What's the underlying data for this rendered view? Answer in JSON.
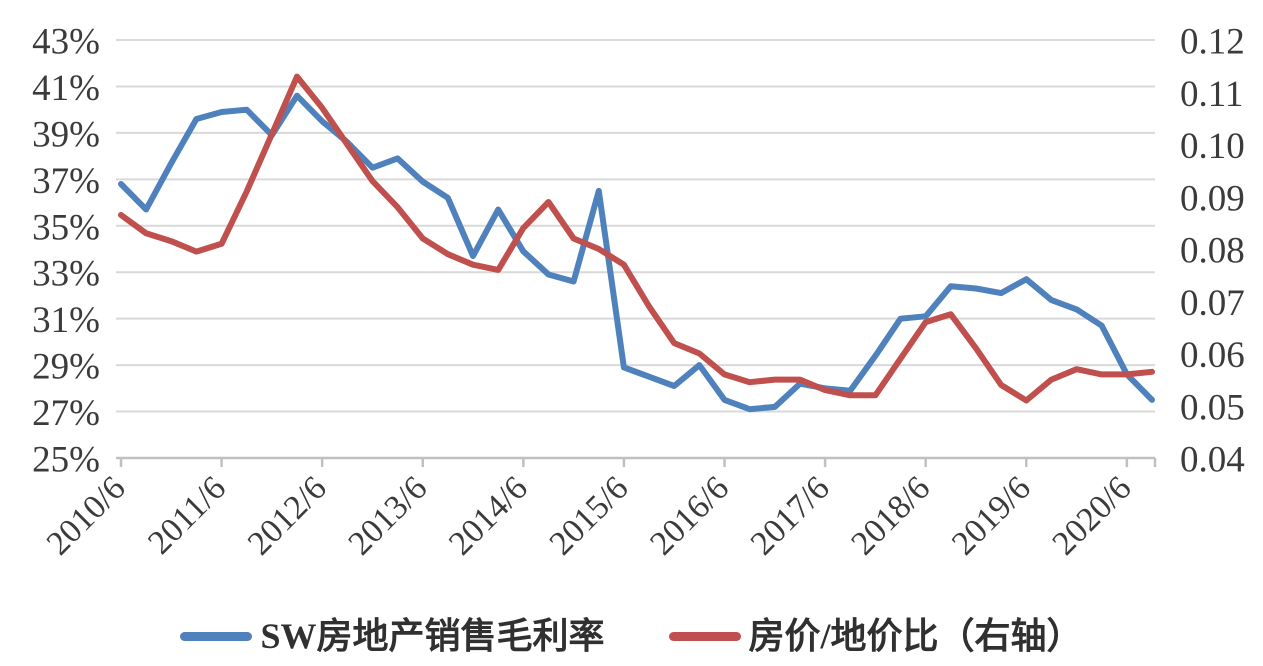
{
  "chart_data": {
    "type": "line",
    "title": "",
    "x_quarters": [
      "2010/6",
      "2010/9",
      "2010/12",
      "2011/3",
      "2011/6",
      "2011/9",
      "2011/12",
      "2012/3",
      "2012/6",
      "2012/9",
      "2012/12",
      "2013/3",
      "2013/6",
      "2013/9",
      "2013/12",
      "2014/3",
      "2014/6",
      "2014/9",
      "2014/12",
      "2015/3",
      "2015/6",
      "2015/9",
      "2015/12",
      "2016/3",
      "2016/6",
      "2016/9",
      "2016/12",
      "2017/3",
      "2017/6",
      "2017/9",
      "2017/12",
      "2018/3",
      "2018/6",
      "2018/9",
      "2018/12",
      "2019/3",
      "2019/6",
      "2019/9",
      "2019/12",
      "2020/3",
      "2020/6",
      "2020/9"
    ],
    "x_tick_labels": [
      "2010/6",
      "2011/6",
      "2012/6",
      "2013/6",
      "2014/6",
      "2015/6",
      "2016/6",
      "2017/6",
      "2018/6",
      "2019/6",
      "2020/6"
    ],
    "left_axis": {
      "min": 25,
      "max": 43,
      "step": 2,
      "labels": [
        "25%",
        "27%",
        "29%",
        "31%",
        "33%",
        "35%",
        "37%",
        "39%",
        "41%",
        "43%"
      ]
    },
    "right_axis": {
      "min": 0.04,
      "max": 0.12,
      "step": 0.01,
      "labels": [
        "0.04",
        "0.05",
        "0.06",
        "0.07",
        "0.08",
        "0.09",
        "0.10",
        "0.11",
        "0.12"
      ]
    },
    "grid": true,
    "legend_position": "bottom",
    "series": [
      {
        "name": "SW房地产销售毛利率",
        "axis": "left",
        "color": "#4f81bd",
        "values": [
          36.8,
          35.7,
          37.7,
          39.6,
          39.9,
          40.0,
          38.9,
          40.6,
          39.5,
          38.6,
          37.5,
          37.9,
          36.9,
          36.2,
          33.7,
          35.7,
          33.9,
          32.9,
          32.6,
          36.5,
          28.9,
          28.5,
          28.1,
          29.0,
          27.5,
          27.1,
          27.2,
          28.2,
          28.0,
          27.9,
          29.4,
          31.0,
          31.1,
          32.4,
          32.3,
          32.1,
          32.7,
          31.8,
          31.4,
          30.7,
          28.6,
          27.5
        ]
      },
      {
        "name": "房价/地价比（右轴）",
        "axis": "right",
        "color": "#c0504d",
        "values": [
          0.0865,
          0.083,
          0.0815,
          0.0795,
          0.081,
          0.091,
          0.102,
          0.113,
          0.107,
          0.1,
          0.093,
          0.088,
          0.082,
          0.079,
          0.077,
          0.076,
          0.084,
          0.089,
          0.082,
          0.08,
          0.077,
          0.069,
          0.062,
          0.06,
          0.056,
          0.0545,
          0.055,
          0.055,
          0.053,
          0.052,
          0.052,
          0.059,
          0.066,
          0.0675,
          0.061,
          0.054,
          0.051,
          0.055,
          0.057,
          0.056,
          0.056,
          0.0565
        ]
      }
    ]
  },
  "legend": {
    "items": [
      {
        "label": "SW房地产销售毛利率",
        "color": "#4f81bd"
      },
      {
        "label": "房价/地价比（右轴）",
        "color": "#c0504d"
      }
    ]
  },
  "style_colors": {
    "grid": "#d9d9d9",
    "axis": "#c0c0c0",
    "tick_text": "#3b3b3b",
    "legend_text": "#303030"
  }
}
